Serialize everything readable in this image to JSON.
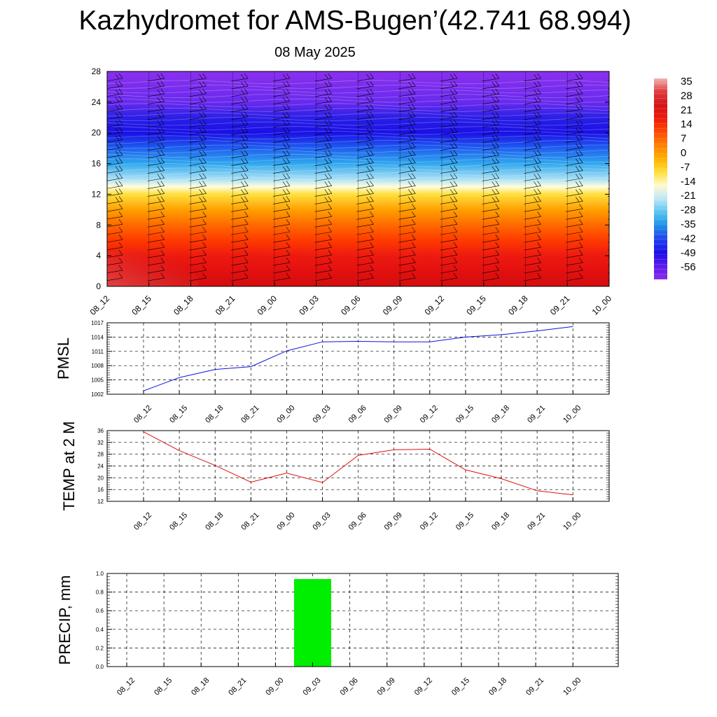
{
  "title": "Kazhydromet for AMS-Bugen’(42.741 68.994)",
  "subtitle": "08 May 2025",
  "time_labels": [
    "08_12",
    "08_15",
    "08_18",
    "08_21",
    "09_00",
    "09_03",
    "09_06",
    "09_09",
    "09_12",
    "09_15",
    "09_18",
    "09_21",
    "10_00"
  ],
  "chart_data": [
    {
      "type": "heatmap",
      "name": "temperature-wind-cross-section",
      "x": [
        "08_12",
        "08_15",
        "08_18",
        "08_21",
        "09_00",
        "09_03",
        "09_06",
        "09_09",
        "09_12",
        "09_15",
        "09_18",
        "09_21",
        "10_00"
      ],
      "ylim": [
        0,
        28
      ],
      "yticks": [
        "0",
        "4",
        "8",
        "12",
        "16",
        "20",
        "24",
        "28"
      ],
      "colorbar": {
        "labels": [
          "35",
          "28",
          "21",
          "14",
          "7",
          "0",
          "-7",
          "-14",
          "-21",
          "-28",
          "-35",
          "-42",
          "-49",
          "-56"
        ],
        "colors": [
          "#f2b4b4",
          "#e03a3a",
          "#d61515",
          "#ee1a0a",
          "#ff4a00",
          "#ff8000",
          "#ffb000",
          "#ffdf3a",
          "#fffad0",
          "#bde6f7",
          "#55c4ef",
          "#1e90e8",
          "#2242ee",
          "#1a10e6",
          "#5c1aec",
          "#8a2cee"
        ]
      },
      "vertical_profile": [
        {
          "height": 0,
          "temp": 29,
          "color": "#d40d0d"
        },
        {
          "height": 2,
          "temp": 28,
          "color": "#e31010"
        },
        {
          "height": 4,
          "temp": 24,
          "color": "#ee1a10"
        },
        {
          "height": 6,
          "temp": 19,
          "color": "#ff3a00"
        },
        {
          "height": 8,
          "temp": 12,
          "color": "#ff6a00"
        },
        {
          "height": 10,
          "temp": 4,
          "color": "#ffa000"
        },
        {
          "height": 12,
          "temp": -5,
          "color": "#ffe040"
        },
        {
          "height": 13,
          "temp": -12,
          "color": "#fffde0"
        },
        {
          "height": 14,
          "temp": -20,
          "color": "#a9e0f5"
        },
        {
          "height": 16,
          "temp": -30,
          "color": "#30a8ee"
        },
        {
          "height": 18,
          "temp": -42,
          "color": "#1e5ff0"
        },
        {
          "height": 20,
          "temp": -52,
          "color": "#1a10e6"
        },
        {
          "height": 22,
          "temp": -55,
          "color": "#2a20e6"
        },
        {
          "height": 24,
          "temp": -60,
          "color": "#6a2aee"
        },
        {
          "height": 28,
          "temp": -62,
          "color": "#8a30ee"
        }
      ]
    },
    {
      "type": "line",
      "name": "pmsl",
      "ylabel": "PMSL",
      "ylim": [
        1002,
        1017
      ],
      "yticks": [
        "1002",
        "1005",
        "1008",
        "1011",
        "1014",
        "1017"
      ],
      "categories": [
        "08_12",
        "08_15",
        "08_18",
        "08_21",
        "09_00",
        "09_03",
        "09_06",
        "09_09",
        "09_12",
        "09_15",
        "09_18",
        "09_21",
        "10_00"
      ],
      "values": [
        1002.7,
        1005.5,
        1007.2,
        1007.8,
        1011.1,
        1013.0,
        1013.1,
        1013.0,
        1013.0,
        1014.0,
        1014.5,
        1015.3,
        1016.2
      ],
      "color": "#1010e0",
      "grid": true
    },
    {
      "type": "line",
      "name": "temp-2m",
      "ylabel": "TEMP at 2 M",
      "ylim": [
        12,
        36
      ],
      "yticks": [
        "12",
        "16",
        "20",
        "24",
        "28",
        "32",
        "36"
      ],
      "categories": [
        "08_12",
        "08_15",
        "08_18",
        "08_21",
        "09_00",
        "09_03",
        "09_06",
        "09_09",
        "09_12",
        "09_15",
        "09_18",
        "09_21",
        "10_00"
      ],
      "values": [
        35.6,
        29.2,
        24.2,
        18.5,
        21.6,
        18.4,
        27.6,
        29.5,
        29.7,
        22.7,
        19.7,
        15.6,
        14.2
      ],
      "color": "#e01010",
      "grid": true
    },
    {
      "type": "bar",
      "name": "precip",
      "ylabel": "PRECIP, mm",
      "ylim": [
        0,
        1
      ],
      "yticks": [
        "0.0",
        "0.2",
        "0.4",
        "0.6",
        "0.8",
        "1.0"
      ],
      "categories": [
        "08_12",
        "08_15",
        "08_18",
        "08_21",
        "09_00",
        "09_03",
        "09_06",
        "09_09",
        "09_12",
        "09_15",
        "09_18",
        "09_21",
        "10_00"
      ],
      "values": [
        0,
        0,
        0,
        0,
        0,
        0.94,
        0,
        0,
        0,
        0,
        0,
        0,
        0
      ],
      "color": "#00ee00",
      "grid": true
    }
  ]
}
